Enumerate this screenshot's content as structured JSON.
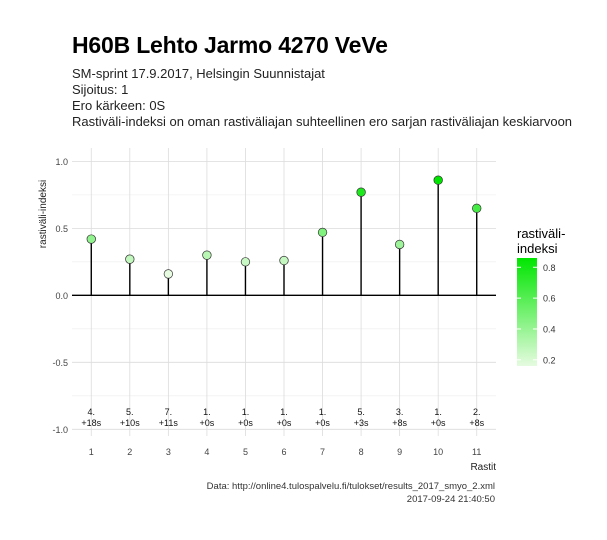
{
  "header": {
    "title": "H60B Lehto Jarmo 4270 VeVe",
    "subtitle_lines": [
      "SM-sprint 17.9.2017, Helsingin Suunnistajat",
      "Sijoitus: 1",
      "Ero kärkeen: 0S",
      "Rastiväli-indeksi on oman rastiväliajan suhteellinen ero sarjan rastiväliajan keskiarvoon"
    ]
  },
  "caption": {
    "source": "Data: http://online4.tulospalvelu.fi/tulokset/results_2017_smyo_2.xml",
    "timestamp": "2017-09-24 21:40:50"
  },
  "legend": {
    "title_line1": "rastiväli-",
    "title_line2": "indeksi",
    "ticks": [
      "0.8",
      "0.6",
      "0.4",
      "0.2"
    ],
    "tick_values": [
      0.8,
      0.6,
      0.4,
      0.2
    ],
    "range": [
      0.16,
      0.86
    ],
    "color_low": "#e6fbe0",
    "color_high": "#00e600"
  },
  "chart_data": {
    "type": "lollipop",
    "xlabel": "Rastit",
    "ylabel": "rastiväli-indeksi",
    "x": [
      1,
      2,
      3,
      4,
      5,
      6,
      7,
      8,
      9,
      10,
      11
    ],
    "x_tick_labels": [
      "1",
      "2",
      "3",
      "4",
      "5",
      "6",
      "7",
      "8",
      "9",
      "10",
      "11"
    ],
    "values": [
      0.42,
      0.27,
      0.16,
      0.3,
      0.25,
      0.26,
      0.47,
      0.77,
      0.38,
      0.86,
      0.65
    ],
    "leg_rank": [
      "4.",
      "5.",
      "7.",
      "1.",
      "1.",
      "1.",
      "1.",
      "5.",
      "3.",
      "1.",
      "2."
    ],
    "time_behind": [
      "+18s",
      "+10s",
      "+11s",
      "+0s",
      "+0s",
      "+0s",
      "+0s",
      "+3s",
      "+8s",
      "+0s",
      "+8s"
    ],
    "ylim": [
      -1.05,
      1.1
    ],
    "y_ticks": [
      -1.0,
      -0.5,
      0.0,
      0.5,
      1.0
    ],
    "y_tick_labels": [
      "-1.0",
      "-0.5",
      "0.0",
      "0.5",
      "1.0"
    ],
    "grid": true,
    "legend_position": "right"
  }
}
